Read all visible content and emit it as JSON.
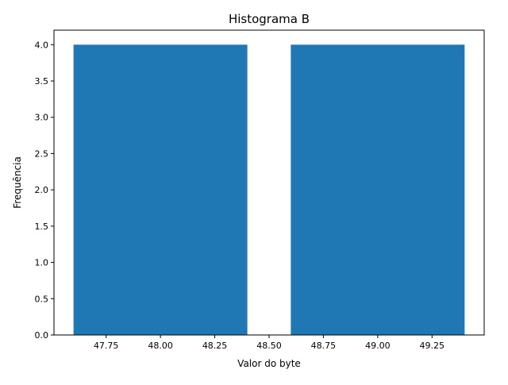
{
  "chart_data": {
    "type": "bar",
    "title": "Histograma B",
    "xlabel": "Valor do byte",
    "ylabel": "Frequência",
    "bars": [
      {
        "x_start": 47.6,
        "x_end": 48.4,
        "value": 4
      },
      {
        "x_start": 48.6,
        "x_end": 49.4,
        "value": 4
      }
    ],
    "xlim": [
      47.51,
      49.49
    ],
    "ylim": [
      0,
      4.2
    ],
    "xticks": [
      47.75,
      48.0,
      48.25,
      48.5,
      48.75,
      49.0,
      49.25
    ],
    "xtick_labels": [
      "47.75",
      "48.00",
      "48.25",
      "48.50",
      "48.75",
      "49.00",
      "49.25"
    ],
    "yticks": [
      0,
      0.5,
      1,
      1.5,
      2,
      2.5,
      3,
      3.5,
      4
    ],
    "ytick_labels": [
      "0.0",
      "0.5",
      "1.0",
      "1.5",
      "2.0",
      "2.5",
      "3.0",
      "3.5",
      "4.0"
    ],
    "grid": false,
    "bar_color": "#1f77b4"
  }
}
